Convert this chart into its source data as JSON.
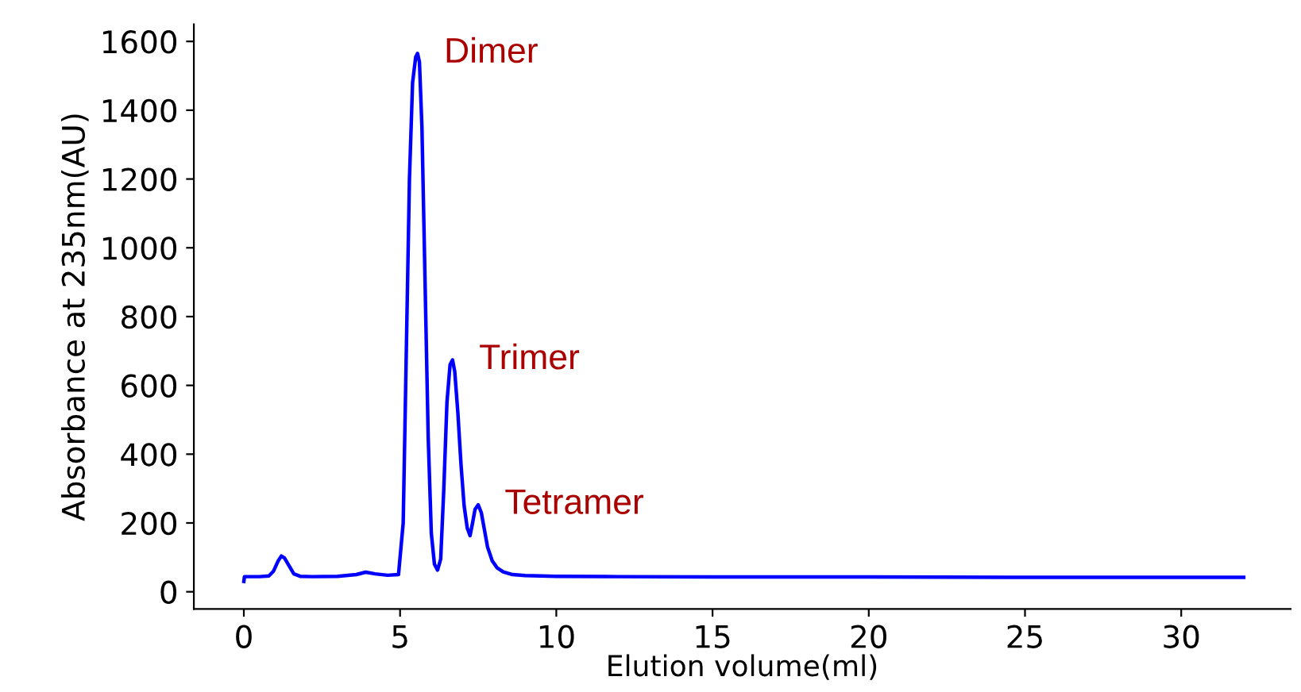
{
  "chart_data": {
    "type": "line",
    "xlabel": "Elution volume(ml)",
    "ylabel": "Absorbance at 235nm(AU)",
    "xlim": [
      -1.6,
      33.5
    ],
    "ylim": [
      -50,
      1650
    ],
    "xticks": [
      0,
      5,
      10,
      15,
      20,
      25,
      30
    ],
    "yticks": [
      0,
      200,
      400,
      600,
      800,
      1000,
      1200,
      1400,
      1600
    ],
    "grid": false,
    "legend": false,
    "series": [
      {
        "color": "#0000ff",
        "x": [
          0,
          0.02,
          0.5,
          0.8,
          0.95,
          1.1,
          1.2,
          1.3,
          1.45,
          1.6,
          1.8,
          2.2,
          3.0,
          3.6,
          3.9,
          4.2,
          4.6,
          4.95,
          5.1,
          5.2,
          5.3,
          5.4,
          5.5,
          5.56,
          5.62,
          5.7,
          5.8,
          5.9,
          6.0,
          6.1,
          6.2,
          6.3,
          6.4,
          6.5,
          6.6,
          6.68,
          6.75,
          6.85,
          6.95,
          7.05,
          7.15,
          7.24,
          7.32,
          7.4,
          7.5,
          7.6,
          7.7,
          7.8,
          7.95,
          8.1,
          8.3,
          8.6,
          9.0,
          10,
          12,
          15,
          20,
          25,
          30,
          32
        ],
        "values": [
          30,
          44,
          44,
          46,
          60,
          90,
          104,
          98,
          75,
          52,
          45,
          44,
          45,
          50,
          57,
          52,
          48,
          50,
          200,
          700,
          1200,
          1480,
          1555,
          1565,
          1540,
          1350,
          900,
          450,
          170,
          80,
          63,
          95,
          300,
          550,
          660,
          674,
          640,
          520,
          370,
          250,
          185,
          163,
          200,
          240,
          253,
          230,
          180,
          130,
          90,
          70,
          58,
          50,
          47,
          45,
          44,
          43,
          43,
          42,
          42,
          42
        ]
      }
    ],
    "annotations": [
      {
        "text": "Dimer",
        "x": 5.56,
        "y": 1565
      },
      {
        "text": "Trimer",
        "x": 6.68,
        "y": 674
      },
      {
        "text": "Tetramer",
        "x": 7.5,
        "y": 253
      }
    ]
  }
}
